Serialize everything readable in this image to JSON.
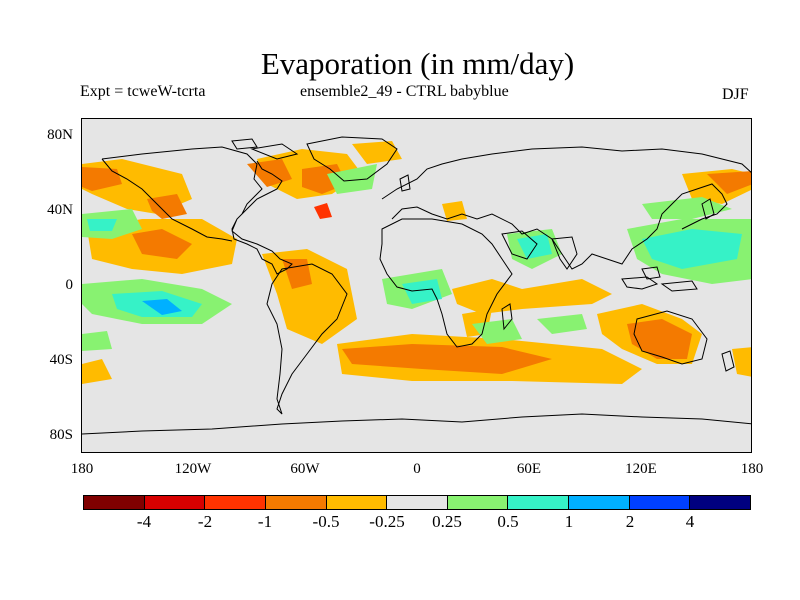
{
  "title": "Evaporation (in mm/day)",
  "subtitle_left": "Expt = tcweW-tcrta",
  "subtitle_center": "ensemble2_49 - CTRL babyblue",
  "season": "DJF",
  "lat_labels": [
    "80N",
    "40N",
    "0",
    "40S",
    "80S"
  ],
  "lon_labels": [
    "180",
    "120W",
    "60W",
    "0",
    "60E",
    "120E",
    "180"
  ],
  "colorbar": {
    "colors": [
      "#800000",
      "#d70000",
      "#ff3300",
      "#f47a00",
      "#ffbb00",
      "#e5e5e5",
      "#88f271",
      "#36f2c7",
      "#00b0ff",
      "#0040ff",
      "#000080"
    ],
    "labels": [
      "-4",
      "-2",
      "-1",
      "-0.5",
      "-0.25",
      "0.25",
      "0.5",
      "1",
      "2",
      "4"
    ]
  },
  "map": {
    "land_color": "#e5e5e5",
    "coast_color": "#000000"
  }
}
